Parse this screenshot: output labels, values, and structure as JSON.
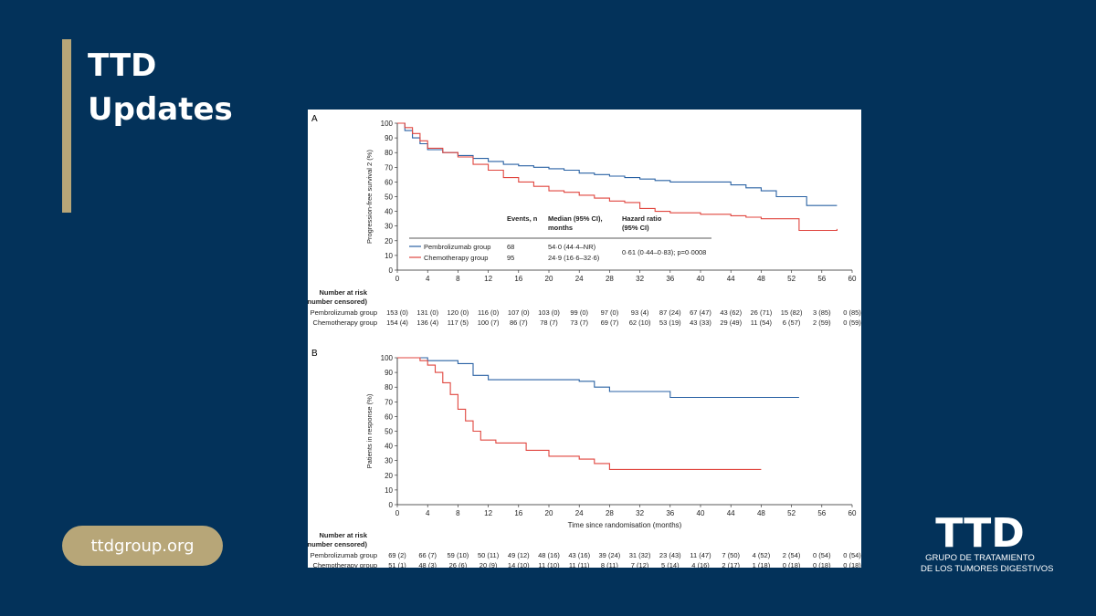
{
  "brand": {
    "title_line1": "TTD",
    "title_line2": "Updates",
    "website": "ttdgroup.org"
  },
  "org": {
    "logo_text": "TTD",
    "line1": "GRUPO DE TRATAMIENTO",
    "line2": "DE LOS TUMORES DIGESTIVOS"
  },
  "colors": {
    "background": "#03325a",
    "accent": "#b7a678",
    "pembrolizumab": "#2a62a4",
    "chemotherapy": "#e0463f"
  },
  "chart_data": [
    {
      "type": "line",
      "panel_label": "A",
      "ylabel": "Progression-free survival 2 (%)",
      "xlabel": "",
      "xlim": [
        0,
        60
      ],
      "ylim": [
        0,
        100
      ],
      "x_ticks": [
        "0",
        "4",
        "8",
        "12",
        "16",
        "20",
        "24",
        "28",
        "32",
        "36",
        "40",
        "44",
        "48",
        "52",
        "56",
        "60"
      ],
      "y_ticks": [
        "0",
        "10",
        "20",
        "30",
        "40",
        "50",
        "60",
        "70",
        "80",
        "90",
        "100"
      ],
      "series": [
        {
          "name": "Pembrolizumab group",
          "points": [
            [
              0,
              100
            ],
            [
              1,
              95
            ],
            [
              2,
              90
            ],
            [
              3,
              86
            ],
            [
              4,
              82
            ],
            [
              6,
              80
            ],
            [
              8,
              78
            ],
            [
              10,
              76
            ],
            [
              12,
              74
            ],
            [
              14,
              72
            ],
            [
              16,
              71
            ],
            [
              18,
              70
            ],
            [
              20,
              69
            ],
            [
              22,
              68
            ],
            [
              24,
              66
            ],
            [
              26,
              65
            ],
            [
              28,
              64
            ],
            [
              30,
              63
            ],
            [
              32,
              62
            ],
            [
              34,
              61
            ],
            [
              36,
              60
            ],
            [
              40,
              60
            ],
            [
              44,
              58
            ],
            [
              46,
              56
            ],
            [
              48,
              54
            ],
            [
              50,
              50
            ],
            [
              53,
              50
            ],
            [
              54,
              44
            ],
            [
              58,
              44
            ]
          ]
        },
        {
          "name": "Chemotherapy group",
          "points": [
            [
              0,
              100
            ],
            [
              1,
              97
            ],
            [
              2,
              93
            ],
            [
              3,
              88
            ],
            [
              4,
              83
            ],
            [
              6,
              80
            ],
            [
              8,
              77
            ],
            [
              10,
              72
            ],
            [
              12,
              68
            ],
            [
              14,
              63
            ],
            [
              16,
              60
            ],
            [
              18,
              57
            ],
            [
              20,
              54
            ],
            [
              22,
              53
            ],
            [
              24,
              51
            ],
            [
              26,
              49
            ],
            [
              28,
              47
            ],
            [
              30,
              46
            ],
            [
              32,
              42
            ],
            [
              34,
              40
            ],
            [
              36,
              39
            ],
            [
              40,
              38
            ],
            [
              44,
              37
            ],
            [
              46,
              36
            ],
            [
              48,
              35
            ],
            [
              52,
              35
            ],
            [
              53,
              27
            ],
            [
              58,
              28
            ]
          ]
        }
      ],
      "table": {
        "header_col1": "Events, n",
        "header_col2_line1": "Median (95% CI),",
        "header_col2_line2": "months",
        "header_col3_line1": "Hazard ratio",
        "header_col3_line2": "(95% CI)",
        "rows": [
          {
            "label": "Pembrolizumab group",
            "events": "68",
            "median": "54·0 (44·4–NR)"
          },
          {
            "label": "Chemotherapy group",
            "events": "95",
            "median": "24·9 (16·6–32·6)"
          }
        ],
        "hazard_ratio": "0·61 (0·44–0·83); p=0·0008"
      },
      "risk_table": {
        "title_line1": "Number at risk",
        "title_line2": "(number censored)",
        "rows": [
          {
            "label": "Pembrolizumab group",
            "values": [
              "153 (0)",
              "131 (0)",
              "120 (0)",
              "116 (0)",
              "107 (0)",
              "103 (0)",
              "99 (0)",
              "97 (0)",
              "93 (4)",
              "87 (24)",
              "67 (47)",
              "43 (62)",
              "26 (71)",
              "15 (82)",
              "3 (85)",
              "0 (85)"
            ]
          },
          {
            "label": "Chemotherapy group",
            "values": [
              "154 (4)",
              "136 (4)",
              "117 (5)",
              "100 (7)",
              "86 (7)",
              "78 (7)",
              "73 (7)",
              "69 (7)",
              "62 (10)",
              "53 (19)",
              "43 (33)",
              "29 (49)",
              "11 (54)",
              "6 (57)",
              "2 (59)",
              "0 (59)"
            ]
          }
        ]
      }
    },
    {
      "type": "line",
      "panel_label": "B",
      "ylabel": "Patients in response (%)",
      "xlabel": "Time since randomisation (months)",
      "xlim": [
        0,
        60
      ],
      "ylim": [
        0,
        100
      ],
      "x_ticks": [
        "0",
        "4",
        "8",
        "12",
        "16",
        "20",
        "24",
        "28",
        "32",
        "36",
        "40",
        "44",
        "48",
        "52",
        "56",
        "60"
      ],
      "y_ticks": [
        "0",
        "10",
        "20",
        "30",
        "40",
        "50",
        "60",
        "70",
        "80",
        "90",
        "100"
      ],
      "series": [
        {
          "name": "Pembrolizumab group",
          "points": [
            [
              0,
              100
            ],
            [
              4,
              98
            ],
            [
              8,
              96
            ],
            [
              10,
              88
            ],
            [
              12,
              85
            ],
            [
              20,
              85
            ],
            [
              24,
              84
            ],
            [
              26,
              80
            ],
            [
              28,
              77
            ],
            [
              36,
              73
            ],
            [
              53,
              73
            ]
          ]
        },
        {
          "name": "Chemotherapy group",
          "points": [
            [
              0,
              100
            ],
            [
              3,
              98
            ],
            [
              4,
              95
            ],
            [
              5,
              90
            ],
            [
              6,
              83
            ],
            [
              7,
              75
            ],
            [
              8,
              65
            ],
            [
              9,
              57
            ],
            [
              10,
              50
            ],
            [
              11,
              44
            ],
            [
              13,
              42
            ],
            [
              16,
              42
            ],
            [
              17,
              37
            ],
            [
              20,
              33
            ],
            [
              24,
              31
            ],
            [
              26,
              28
            ],
            [
              28,
              24
            ],
            [
              48,
              24
            ]
          ]
        }
      ],
      "risk_table": {
        "title_line1": "Number at risk",
        "title_line2": "(number censored)",
        "rows": [
          {
            "label": "Pembrolizumab group",
            "values": [
              "69 (2)",
              "66 (7)",
              "59 (10)",
              "50 (11)",
              "49 (12)",
              "48 (16)",
              "43 (16)",
              "39 (24)",
              "31 (32)",
              "23 (43)",
              "11 (47)",
              "7 (50)",
              "4 (52)",
              "2 (54)",
              "0 (54)",
              "0 (54)"
            ]
          },
          {
            "label": "Chemotherapy group",
            "values": [
              "51 (1)",
              "48 (3)",
              "26 (6)",
              "20 (9)",
              "14 (10)",
              "11 (10)",
              "11 (11)",
              "8 (11)",
              "7 (12)",
              "5 (14)",
              "4 (16)",
              "2 (17)",
              "1 (18)",
              "0 (18)",
              "0 (18)",
              "0 (18)"
            ]
          }
        ]
      }
    }
  ]
}
